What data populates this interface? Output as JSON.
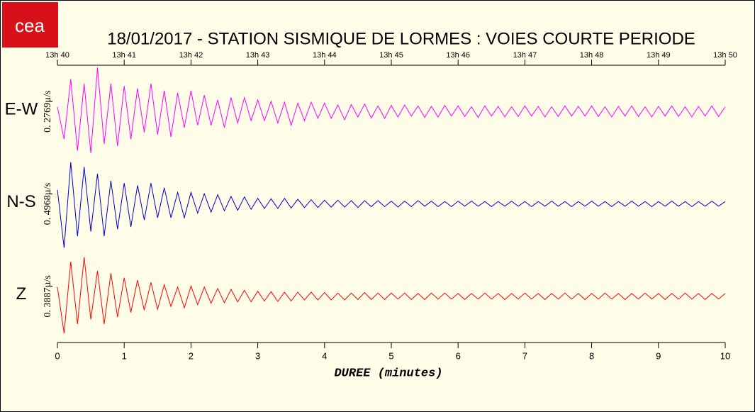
{
  "logo": "cea",
  "chart_data": {
    "type": "line",
    "title": "18/01/2017  -  STATION SISMIQUE DE LORMES : VOIES COURTE PERIODE",
    "xlabel": "DUREE (minutes)",
    "xlim": [
      0,
      10
    ],
    "xticks": [
      0,
      1,
      2,
      3,
      4,
      5,
      6,
      7,
      8,
      9,
      10
    ],
    "top_xticks": [
      {
        "value": 0,
        "label": "13h 40"
      },
      {
        "value": 1,
        "label": "13h 41"
      },
      {
        "value": 2,
        "label": "13h 42"
      },
      {
        "value": 3,
        "label": "13h 43"
      },
      {
        "value": 4,
        "label": "13h 44"
      },
      {
        "value": 5,
        "label": "13h 45"
      },
      {
        "value": 6,
        "label": "13h 46"
      },
      {
        "value": 7,
        "label": "13h 47"
      },
      {
        "value": 8,
        "label": "13h 48"
      },
      {
        "value": 9,
        "label": "13h 49"
      },
      {
        "value": 10,
        "label": "13h 50"
      }
    ],
    "ylim": [
      -1,
      1
    ],
    "x": [
      0,
      0.1,
      0.2,
      0.3,
      0.4,
      0.5,
      0.6,
      0.7,
      0.8,
      0.9,
      1,
      1.1,
      1.2,
      1.3,
      1.4,
      1.5,
      1.6,
      1.7,
      1.8,
      1.9,
      2,
      2.1,
      2.2,
      2.3,
      2.4,
      2.5,
      2.6,
      2.7,
      2.8,
      2.9,
      3,
      3.1,
      3.2,
      3.3,
      3.4,
      3.5,
      3.6,
      3.7,
      3.8,
      3.9,
      4,
      4.1,
      4.2,
      4.3,
      4.4,
      4.5,
      4.6,
      4.7,
      4.8,
      4.9,
      5,
      5.1,
      5.2,
      5.3,
      5.4,
      5.5,
      5.6,
      5.7,
      5.8,
      5.9,
      6,
      6.1,
      6.2,
      6.3,
      6.4,
      6.5,
      6.6,
      6.7,
      6.8,
      6.9,
      7,
      7.1,
      7.2,
      7.3,
      7.4,
      7.5,
      7.6,
      7.7,
      7.8,
      7.9,
      8,
      8.1,
      8.2,
      8.3,
      8.4,
      8.5,
      8.6,
      8.7,
      8.8,
      8.9,
      9,
      9.1,
      9.2,
      9.3,
      9.4,
      9.5,
      9.6,
      9.7,
      9.8,
      9.9,
      10
    ],
    "series": [
      {
        "name": "E-W",
        "scale_label": "0. 2769µ/s",
        "color": "#ff00ff",
        "values": [
          0.1,
          -0.6,
          0.7,
          -0.85,
          0.6,
          -0.9,
          0.95,
          -0.7,
          0.6,
          -0.75,
          0.55,
          -0.6,
          0.5,
          -0.45,
          0.6,
          -0.5,
          0.45,
          -0.55,
          0.4,
          -0.35,
          0.45,
          -0.3,
          0.35,
          -0.3,
          0.25,
          -0.35,
          0.3,
          -0.25,
          0.3,
          -0.2,
          0.25,
          -0.2,
          0.22,
          -0.25,
          0.2,
          -0.3,
          0.18,
          -0.2,
          0.2,
          -0.15,
          0.18,
          -0.15,
          0.14,
          -0.18,
          0.15,
          -0.12,
          0.16,
          -0.14,
          0.12,
          -0.15,
          0.13,
          -0.12,
          0.14,
          -0.1,
          0.12,
          -0.13,
          0.11,
          -0.12,
          0.13,
          -0.1,
          0.12,
          -0.11,
          0.1,
          -0.13,
          0.12,
          -0.1,
          0.11,
          -0.12,
          0.1,
          -0.11,
          0.12,
          -0.1,
          0.11,
          -0.12,
          0.1,
          -0.11,
          0.12,
          -0.1,
          0.11,
          -0.1,
          0.12,
          -0.11,
          0.1,
          -0.12,
          0.11,
          -0.1,
          0.12,
          -0.11,
          0.1,
          -0.12,
          0.11,
          -0.1,
          0.12,
          -0.11,
          0.1,
          -0.12,
          0.11,
          -0.1,
          0.12,
          -0.11,
          0.1
        ]
      },
      {
        "name": "N-S",
        "scale_label": "0. 4968µ/s",
        "color": "#0000cc",
        "values": [
          0.3,
          -0.95,
          0.9,
          -0.7,
          0.8,
          -0.6,
          0.65,
          -0.7,
          0.5,
          -0.55,
          0.45,
          -0.5,
          0.4,
          -0.35,
          0.45,
          -0.3,
          0.35,
          -0.3,
          0.25,
          -0.3,
          0.25,
          -0.2,
          0.22,
          -0.18,
          0.2,
          -0.15,
          0.16,
          -0.14,
          0.15,
          -0.12,
          0.12,
          -0.1,
          0.11,
          -0.1,
          0.12,
          -0.09,
          0.1,
          -0.08,
          0.09,
          -0.08,
          0.08,
          -0.07,
          0.08,
          -0.07,
          0.07,
          -0.08,
          0.07,
          -0.06,
          0.07,
          -0.06,
          0.06,
          -0.07,
          0.06,
          -0.06,
          0.07,
          -0.05,
          0.06,
          -0.06,
          0.05,
          -0.06,
          0.06,
          -0.05,
          0.06,
          -0.05,
          0.05,
          -0.06,
          0.05,
          -0.05,
          0.06,
          -0.05,
          0.05,
          -0.06,
          0.05,
          -0.05,
          0.06,
          -0.05,
          0.05,
          -0.06,
          0.05,
          -0.05,
          0.06,
          -0.05,
          0.05,
          -0.06,
          0.05,
          -0.05,
          0.06,
          -0.05,
          0.05,
          -0.06,
          0.05,
          -0.05,
          0.06,
          -0.05,
          0.05,
          -0.06,
          0.05,
          -0.05,
          0.06,
          -0.05,
          0.05
        ]
      },
      {
        "name": "Z",
        "scale_label": "0. 3887µ/s",
        "color": "#ff0000",
        "values": [
          0.2,
          -0.8,
          0.75,
          -0.6,
          0.85,
          -0.5,
          0.55,
          -0.6,
          0.5,
          -0.45,
          0.4,
          -0.35,
          0.35,
          -0.3,
          0.3,
          -0.28,
          0.25,
          -0.22,
          0.2,
          -0.25,
          0.22,
          -0.18,
          0.2,
          -0.15,
          0.17,
          -0.14,
          0.15,
          -0.12,
          0.13,
          -0.12,
          0.11,
          -0.1,
          0.1,
          -0.11,
          0.09,
          -0.1,
          0.09,
          -0.08,
          0.09,
          -0.08,
          0.08,
          -0.08,
          0.07,
          -0.08,
          0.07,
          -0.07,
          0.08,
          -0.07,
          0.07,
          -0.07,
          0.07,
          -0.06,
          0.07,
          -0.07,
          0.06,
          -0.07,
          0.07,
          -0.06,
          0.07,
          -0.06,
          0.06,
          -0.07,
          0.06,
          -0.06,
          0.07,
          -0.06,
          0.06,
          -0.07,
          0.06,
          -0.06,
          0.07,
          -0.06,
          0.06,
          -0.07,
          0.06,
          -0.06,
          0.07,
          -0.06,
          0.06,
          -0.07,
          0.06,
          -0.06,
          0.07,
          -0.06,
          0.06,
          -0.07,
          0.06,
          -0.06,
          0.07,
          -0.06,
          0.06,
          -0.07,
          0.06,
          -0.06,
          0.07,
          -0.06,
          0.06,
          -0.07,
          0.06,
          -0.06,
          0.06
        ]
      }
    ]
  }
}
